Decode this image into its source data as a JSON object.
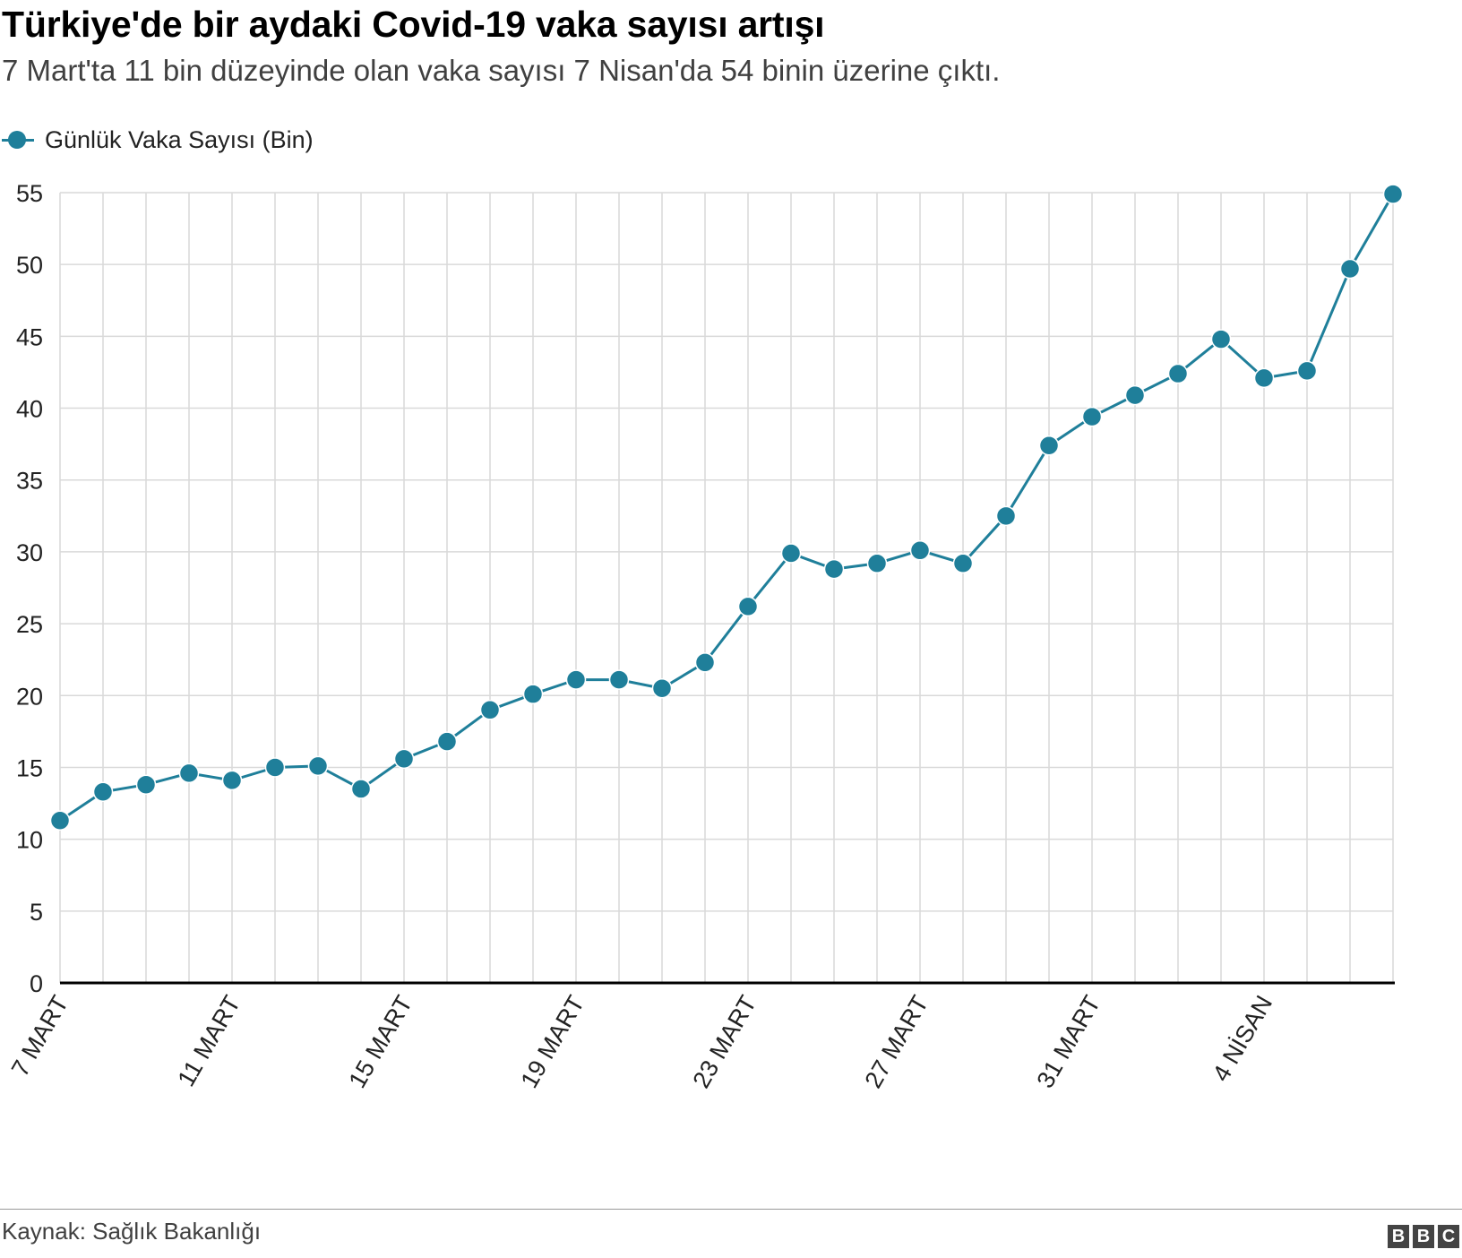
{
  "header": {
    "title": "Türkiye'de bir aydaki Covid-19 vaka sayısı artışı",
    "subtitle": "7 Mart'ta 11 bin düzeyinde olan vaka sayısı 7 Nisan'da 54 binin üzerine çıktı."
  },
  "legend": {
    "label": "Günlük Vaka Sayısı (Bin)",
    "color": "#1f7f9a"
  },
  "footer": {
    "source": "Kaynak: Sağlık Bakanlığı",
    "logo_letters": [
      "B",
      "B",
      "C"
    ]
  },
  "colors": {
    "series": "#1f7f9a",
    "grid": "#d9d9d9",
    "axis": "#000000",
    "text": "#222222"
  },
  "chart_data": {
    "type": "line",
    "title": "Türkiye'de bir aydaki Covid-19 vaka sayısı artışı",
    "subtitle": "7 Mart'ta 11 bin düzeyinde olan vaka sayısı 7 Nisan'da 54 binin üzerine çıktı.",
    "xlabel": "",
    "ylabel": "",
    "ylim": [
      0,
      55
    ],
    "yticks": [
      0,
      5,
      10,
      15,
      20,
      25,
      30,
      35,
      40,
      45,
      50,
      55
    ],
    "grid": true,
    "legend_position": "top-left",
    "x": [
      "7 MART",
      "8 MART",
      "9 MART",
      "10 MART",
      "11 MART",
      "12 MART",
      "13 MART",
      "14 MART",
      "15 MART",
      "16 MART",
      "17 MART",
      "18 MART",
      "19 MART",
      "20 MART",
      "21 MART",
      "22 MART",
      "23 MART",
      "24 MART",
      "25 MART",
      "26 MART",
      "27 MART",
      "28 MART",
      "29 MART",
      "30 MART",
      "31 MART",
      "1 NİSAN",
      "2 NİSAN",
      "3 NİSAN",
      "4 NİSAN",
      "5 NİSAN",
      "6 NİSAN",
      "7 NİSAN"
    ],
    "xtick_labels": [
      {
        "index": 0,
        "label": "7 MART"
      },
      {
        "index": 4,
        "label": "11 MART"
      },
      {
        "index": 8,
        "label": "15 MART"
      },
      {
        "index": 12,
        "label": "19 MART"
      },
      {
        "index": 16,
        "label": "23 MART"
      },
      {
        "index": 20,
        "label": "27 MART"
      },
      {
        "index": 24,
        "label": "31 MART"
      },
      {
        "index": 28,
        "label": "4 NİSAN"
      }
    ],
    "series": [
      {
        "name": "Günlük Vaka Sayısı (Bin)",
        "color": "#1f7f9a",
        "values": [
          11.3,
          13.3,
          13.8,
          14.6,
          14.1,
          15.0,
          15.1,
          13.5,
          15.6,
          16.8,
          19.0,
          20.1,
          21.1,
          21.1,
          20.5,
          22.3,
          26.2,
          29.9,
          28.8,
          29.2,
          30.1,
          29.2,
          32.5,
          37.4,
          39.4,
          40.9,
          42.4,
          44.8,
          42.1,
          42.6,
          49.7,
          54.9
        ]
      }
    ]
  }
}
